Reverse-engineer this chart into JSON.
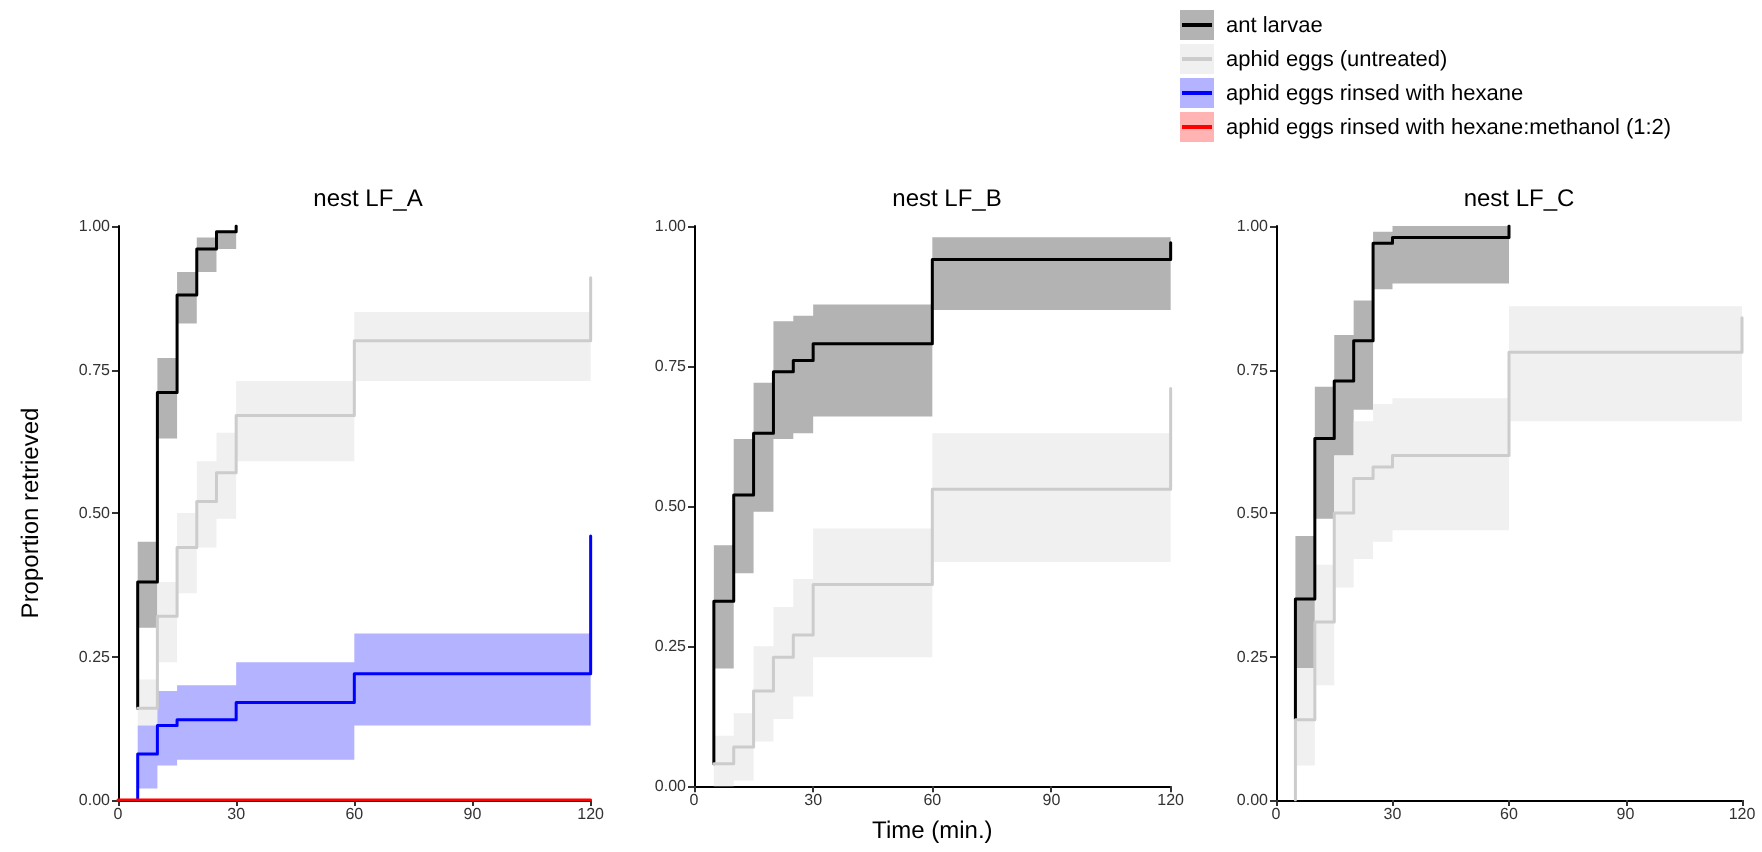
{
  "chart_data": [
    {
      "type": "step",
      "title": "nest LF_A",
      "ylabel": "Proportion retrieved",
      "legend": "top right",
      "grid": false,
      "xlim": [
        0,
        120
      ],
      "xticks": [
        0,
        30,
        60,
        90,
        120
      ],
      "ylim": [
        0,
        1
      ],
      "yticks": [
        {
          "value": 0,
          "label": "0.00"
        },
        {
          "value": 0.25,
          "label": "0.25"
        },
        {
          "value": 0.5,
          "label": "0.50"
        },
        {
          "value": 0.75,
          "label": "0.75"
        },
        {
          "value": 1,
          "label": "1.00"
        }
      ],
      "series": [
        {
          "name": "ant larvae",
          "color": "#000000",
          "x": [
            5,
            5,
            10,
            15,
            20,
            25,
            30
          ],
          "values": [
            0.16,
            0.38,
            0.71,
            0.88,
            0.96,
            0.99,
            1.0
          ],
          "lower": [
            null,
            0.3,
            0.63,
            0.83,
            0.92,
            0.96,
            0.96
          ],
          "upper": [
            null,
            0.45,
            0.77,
            0.92,
            0.98,
            0.99,
            0.99
          ]
        },
        {
          "name": "aphid eggs (untreated)",
          "color": "#cccccc",
          "x": [
            5,
            10,
            15,
            20,
            25,
            30,
            60,
            120
          ],
          "values": [
            0.16,
            0.32,
            0.44,
            0.52,
            0.57,
            0.67,
            0.8,
            0.91
          ],
          "lower": [
            0.13,
            0.24,
            0.36,
            0.44,
            0.49,
            0.59,
            0.73,
            0.73
          ],
          "upper": [
            0.21,
            0.38,
            0.5,
            0.59,
            0.64,
            0.73,
            0.85,
            0.85
          ]
        },
        {
          "name": "aphid eggs rinsed with hexane",
          "color": "#0000ff",
          "x": [
            5,
            5,
            10,
            15,
            30,
            60,
            120
          ],
          "values": [
            0,
            0.08,
            0.13,
            0.14,
            0.17,
            0.22,
            0.46
          ],
          "lower": [
            null,
            0.02,
            0.06,
            0.07,
            0.07,
            0.13,
            0.13
          ],
          "upper": [
            null,
            0.13,
            0.19,
            0.2,
            0.24,
            0.29,
            0.29
          ]
        },
        {
          "name": "aphid eggs rinsed with hexane:methanol (1:2)",
          "color": "#ff0000",
          "x": [
            0,
            120
          ],
          "values": [
            0,
            0
          ]
        }
      ]
    },
    {
      "type": "step",
      "title": "nest LF_B",
      "xlabel": "Time (min.)",
      "grid": false,
      "xlim": [
        0,
        120
      ],
      "xticks": [
        0,
        30,
        60,
        90,
        120
      ],
      "ylim": [
        0,
        1
      ],
      "yticks": [
        {
          "value": 0,
          "label": "0.00"
        },
        {
          "value": 0.25,
          "label": "0.25"
        },
        {
          "value": 0.5,
          "label": "0.50"
        },
        {
          "value": 0.75,
          "label": "0.75"
        },
        {
          "value": 1,
          "label": "1.00"
        }
      ],
      "series": [
        {
          "color": "#000000",
          "x": [
            5,
            5,
            10,
            15,
            20,
            25,
            30,
            60,
            120
          ],
          "values": [
            0.04,
            0.33,
            0.52,
            0.63,
            0.74,
            0.76,
            0.79,
            0.94,
            0.97
          ],
          "lower": [
            null,
            0.21,
            0.38,
            0.49,
            0.62,
            0.63,
            0.66,
            0.85,
            0.85
          ],
          "upper": [
            null,
            0.43,
            0.62,
            0.72,
            0.83,
            0.84,
            0.86,
            0.98,
            0.98
          ]
        },
        {
          "color": "#cccccc",
          "x": [
            5,
            10,
            15,
            20,
            25,
            30,
            60,
            120
          ],
          "values": [
            0.04,
            0.07,
            0.17,
            0.23,
            0.27,
            0.36,
            0.53,
            0.71
          ],
          "lower": [
            0,
            0.01,
            0.08,
            0.12,
            0.16,
            0.23,
            0.4,
            0.4
          ],
          "upper": [
            0.09,
            0.13,
            0.25,
            0.32,
            0.37,
            0.46,
            0.63,
            0.63
          ]
        }
      ]
    },
    {
      "type": "step",
      "title": "nest LF_C",
      "grid": false,
      "xlim": [
        0,
        120
      ],
      "xticks": [
        0,
        30,
        60,
        90,
        120
      ],
      "ylim": [
        0,
        1
      ],
      "yticks": [
        {
          "value": 0,
          "label": "0.00"
        },
        {
          "value": 0.25,
          "label": "0.25"
        },
        {
          "value": 0.5,
          "label": "0.50"
        },
        {
          "value": 0.75,
          "label": "0.75"
        },
        {
          "value": 1,
          "label": "1.00"
        }
      ],
      "series": [
        {
          "color": "#000000",
          "x": [
            5,
            5,
            10,
            15,
            20,
            25,
            30,
            60
          ],
          "values": [
            0.14,
            0.35,
            0.63,
            0.73,
            0.8,
            0.97,
            0.98,
            1.0
          ],
          "lower": [
            null,
            0.23,
            0.49,
            0.6,
            0.68,
            0.89,
            0.9,
            0.9
          ],
          "upper": [
            null,
            0.46,
            0.72,
            0.81,
            0.87,
            0.99,
            1.0,
            1.0
          ]
        },
        {
          "color": "#cccccc",
          "x": [
            5,
            5,
            10,
            15,
            20,
            25,
            30,
            60,
            120
          ],
          "values": [
            0,
            0.14,
            0.31,
            0.5,
            0.56,
            0.58,
            0.6,
            0.78,
            0.84
          ],
          "lower": [
            null,
            0.06,
            0.2,
            0.37,
            0.42,
            0.45,
            0.47,
            0.66,
            0.66
          ],
          "upper": [
            null,
            0.23,
            0.41,
            0.6,
            0.66,
            0.69,
            0.7,
            0.86,
            0.86
          ]
        }
      ]
    }
  ]
}
